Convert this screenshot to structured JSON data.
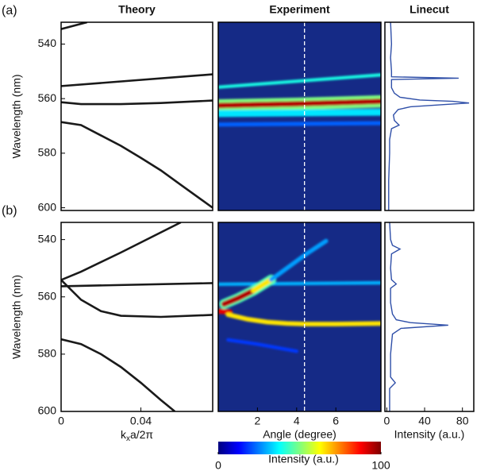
{
  "chart_data": [
    {
      "type": "line",
      "panel_label": "(a)",
      "title": "Theory",
      "ylabel": "Wavelength (nm)",
      "xlim": [
        0,
        0.076
      ],
      "ylim": [
        532,
        601
      ],
      "yticks": [
        540,
        560,
        580,
        600
      ],
      "color": "#1a1a1a",
      "series": [
        {
          "x": [
            0,
            0.013
          ],
          "values": [
            534.5,
            532
          ]
        },
        {
          "x": [
            0,
            0.076
          ],
          "values": [
            555.4,
            551.1
          ]
        },
        {
          "x": [
            0,
            0.01,
            0.03,
            0.05,
            0.076
          ],
          "values": [
            561.3,
            562,
            562,
            561.6,
            560.7
          ]
        },
        {
          "x": [
            0,
            0.01,
            0.02,
            0.03,
            0.04,
            0.05,
            0.06,
            0.076
          ],
          "values": [
            568.6,
            569.7,
            573.5,
            577.3,
            581.7,
            586.3,
            591.6,
            600
          ]
        }
      ]
    },
    {
      "type": "heatmap",
      "title": "Experiment",
      "xlim": [
        0,
        8.3
      ],
      "ylim": [
        532,
        601
      ],
      "marker_x": 4.4,
      "bands": [
        {
          "x": [
            0,
            8.3
          ],
          "y": [
            555.8,
            551.3
          ],
          "intensity": 40,
          "width": 1.2
        },
        {
          "x": [
            0,
            2,
            4,
            6,
            8.3
          ],
          "y": [
            562.5,
            562.2,
            561.9,
            561.5,
            561
          ],
          "intensity": 50,
          "width": 4.5
        },
        {
          "x": [
            0,
            2,
            4,
            6,
            8.3
          ],
          "y": [
            562.5,
            562.2,
            561.9,
            561.5,
            561
          ],
          "intensity": 95,
          "width": 2
        },
        {
          "x": [
            0,
            8.3
          ],
          "y": [
            565.5,
            565
          ],
          "intensity": 35,
          "width": 2.5
        },
        {
          "x": [
            0,
            8.3
          ],
          "y": [
            569.5,
            569
          ],
          "intensity": 22,
          "width": 1.5
        }
      ]
    },
    {
      "type": "profile",
      "title": "Linecut",
      "xlim": [
        -2,
        92
      ],
      "ylim": [
        532,
        601
      ],
      "color": "#2f4fa8",
      "wavelengths": [
        532,
        540,
        545,
        550,
        552,
        552.5,
        553,
        556,
        558,
        559.5,
        560.5,
        561,
        561.6,
        562.2,
        563,
        564,
        566,
        568,
        569.7,
        571,
        575,
        580,
        590,
        601
      ],
      "values": [
        4,
        5,
        4,
        5,
        5,
        76,
        5,
        5,
        8,
        14,
        35,
        70,
        87,
        60,
        25,
        12,
        7,
        8,
        13,
        5,
        3,
        3,
        2,
        2
      ]
    },
    {
      "type": "line",
      "panel_label": "(b)",
      "ylabel": "Wavelength (nm)",
      "xlabel": {
        "text": "k",
        "sub": "x",
        "rest": "a/2π"
      },
      "xlim": [
        0,
        0.076
      ],
      "ylim": [
        534,
        600
      ],
      "xticks": [
        0,
        0.04
      ],
      "yticks": [
        540,
        560,
        580,
        600
      ],
      "color": "#1a1a1a",
      "series": [
        {
          "x": [
            0,
            0.01,
            0.03,
            0.06
          ],
          "values": [
            554.1,
            551.2,
            544.5,
            534
          ]
        },
        {
          "x": [
            0,
            0.01,
            0.02,
            0.03,
            0.05,
            0.076
          ],
          "values": [
            554.1,
            561,
            565,
            566.6,
            567,
            566.3
          ]
        },
        {
          "x": [
            0,
            0.076
          ],
          "values": [
            556.3,
            555.2
          ]
        },
        {
          "x": [
            0,
            0.01,
            0.02,
            0.03,
            0.04,
            0.05,
            0.057
          ],
          "values": [
            574.8,
            576.5,
            580,
            584.5,
            590,
            596,
            600
          ]
        }
      ]
    },
    {
      "type": "heatmap",
      "xlabel": "Angle (degree)",
      "xlim": [
        0,
        8.3
      ],
      "ylim": [
        534,
        600
      ],
      "xticks": [
        2,
        4,
        6
      ],
      "marker_x": 4.4,
      "bands": [
        {
          "x": [
            0,
            8.3
          ],
          "y": [
            555.6,
            555.1
          ],
          "intensity": 30,
          "width": 1.2
        },
        {
          "x": [
            0.3,
            1,
            1.8,
            2.7
          ],
          "y": [
            562.5,
            560.5,
            557.8,
            554
          ],
          "intensity": 45,
          "width": 3.5
        },
        {
          "x": [
            0.3,
            1,
            1.8
          ],
          "y": [
            562.5,
            560.5,
            557.8
          ],
          "intensity": 95,
          "width": 2
        },
        {
          "x": [
            1.8,
            2.7
          ],
          "y": [
            557.8,
            554
          ],
          "intensity": 65,
          "width": 1.8
        },
        {
          "x": [
            2.7,
            3.5,
            4.5,
            5.5
          ],
          "y": [
            554,
            550,
            545,
            540.5
          ],
          "intensity": 28,
          "width": 1.5
        },
        {
          "x": [
            0,
            0.6
          ],
          "y": [
            565,
            565.3
          ],
          "intensity": 90,
          "width": 1.8
        },
        {
          "x": [
            0.5,
            1.5,
            2.5,
            3.5,
            4.5,
            6,
            8.3
          ],
          "y": [
            566.2,
            567.8,
            568.8,
            569.3,
            569.5,
            569.5,
            569.3
          ],
          "intensity": 65,
          "width": 1.6
        },
        {
          "x": [
            0.5,
            2,
            4
          ],
          "y": [
            575,
            576.5,
            579
          ],
          "intensity": 18,
          "width": 1.2
        }
      ]
    },
    {
      "type": "profile",
      "xlabel": "Intensity (a.u.)",
      "xlim": [
        -2,
        92
      ],
      "ylim": [
        534,
        600
      ],
      "xticks": [
        0,
        40,
        80
      ],
      "color": "#2f4fa8",
      "wavelengths": [
        534,
        540,
        542,
        543.3,
        545,
        550,
        554,
        555.5,
        557,
        562,
        566,
        568,
        569,
        569.9,
        571,
        573,
        580,
        588,
        590,
        592,
        600
      ],
      "values": [
        3,
        4,
        6,
        14,
        5,
        4,
        5,
        10,
        4,
        4,
        6,
        10,
        25,
        65,
        15,
        6,
        4,
        4,
        9,
        3,
        3
      ]
    },
    {
      "type": "colorbar",
      "label": "Intensity (a.u.)",
      "lim": [
        0,
        100
      ],
      "ticks": [
        0,
        100
      ],
      "colors": [
        "#00007f",
        "#0000ff",
        "#007fff",
        "#00ffff",
        "#7fff7f",
        "#ffff00",
        "#ff7f00",
        "#ff0000",
        "#7f0000"
      ]
    }
  ]
}
